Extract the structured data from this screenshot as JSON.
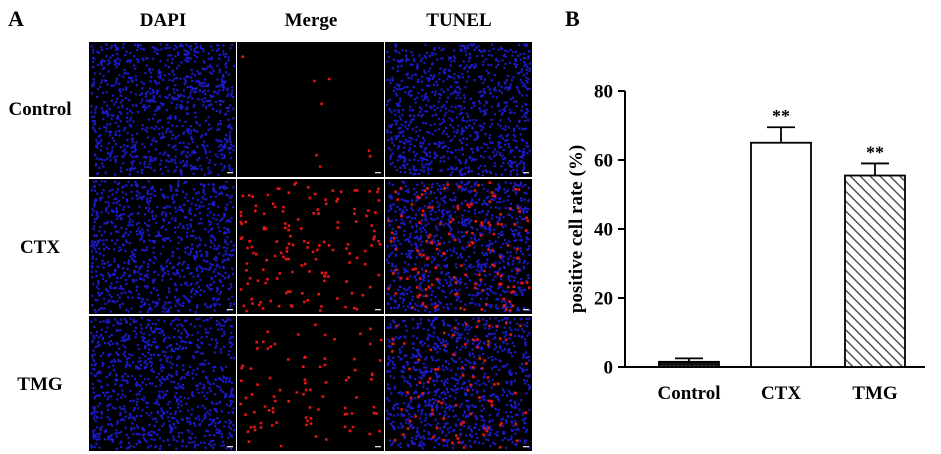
{
  "panel_a": {
    "label": "A",
    "columns": [
      "DAPI",
      "Merge",
      "TUNEL"
    ],
    "rows": [
      "Control",
      "CTX",
      "TMG"
    ],
    "images": [
      {
        "row": "Control",
        "column": "DAPI",
        "stain": "blue nuclei",
        "red_density": 0
      },
      {
        "row": "Control",
        "column": "Merge",
        "stain": "red (TUNEL-positive) on black",
        "red_density": 0.05
      },
      {
        "row": "Control",
        "column": "TUNEL",
        "stain": "blue nuclei",
        "red_density": 0
      },
      {
        "row": "CTX",
        "column": "DAPI",
        "stain": "blue nuclei",
        "red_density": 0
      },
      {
        "row": "CTX",
        "column": "Merge",
        "stain": "red (TUNEL-positive) on black",
        "red_density": 1
      },
      {
        "row": "CTX",
        "column": "TUNEL",
        "stain": "blue nuclei with red",
        "red_density": 1
      },
      {
        "row": "TMG",
        "column": "DAPI",
        "stain": "blue nuclei",
        "red_density": 0
      },
      {
        "row": "TMG",
        "column": "Merge",
        "stain": "red (TUNEL-positive) on black",
        "red_density": 0.6
      },
      {
        "row": "TMG",
        "column": "TUNEL",
        "stain": "blue nuclei with red",
        "red_density": 0.6
      }
    ],
    "colors": {
      "nuclei": "#1c1cd8",
      "tunel": "#e31515",
      "background": "#000000"
    }
  },
  "panel_b": {
    "label": "B"
  },
  "chart_data": {
    "type": "bar",
    "categories": [
      "Control",
      "CTX",
      "TMG"
    ],
    "values": [
      1.5,
      65,
      55.5
    ],
    "errors": [
      1,
      4.5,
      3.5
    ],
    "significance": [
      "",
      "**",
      "**"
    ],
    "fills": [
      "dotted-black",
      "white",
      "hatched-gray"
    ],
    "title": "",
    "xlabel": "",
    "ylabel": "positive cell rate (%)",
    "ylim": [
      0,
      80
    ],
    "yticks": [
      0,
      20,
      40,
      60,
      80
    ],
    "grid": false
  }
}
